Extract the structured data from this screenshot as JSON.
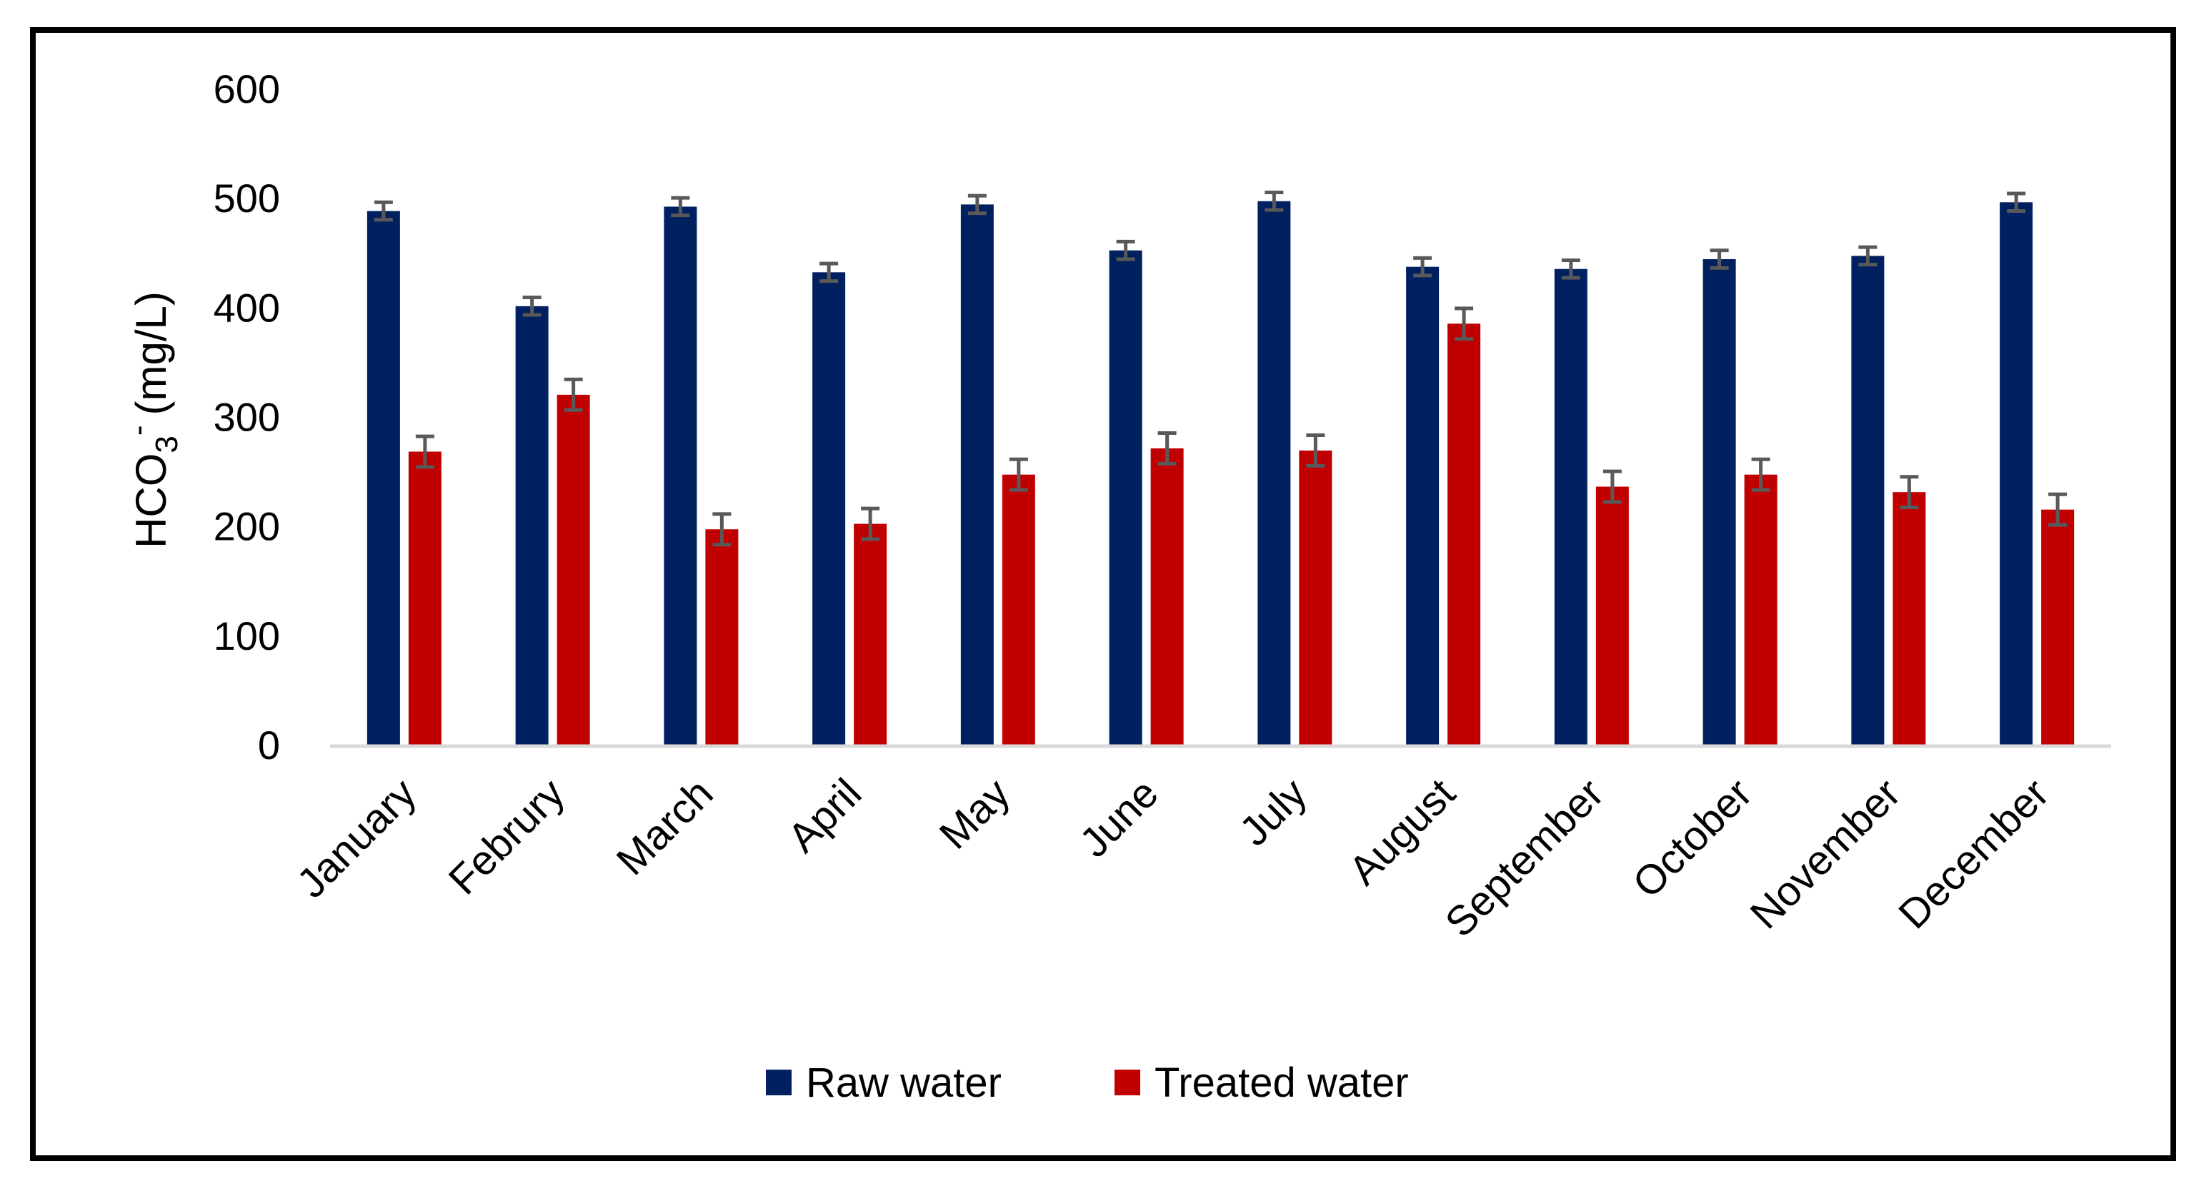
{
  "chart_data": {
    "type": "bar",
    "title": "",
    "xlabel": "",
    "ylabel": {
      "main": "HCO",
      "subscript": "3",
      "superscript": "-",
      "units": "(mg/L)"
    },
    "ylim": [
      0,
      600
    ],
    "yticks": [
      0,
      100,
      200,
      300,
      400,
      500,
      600
    ],
    "grid": false,
    "legend_position": "bottom",
    "categories": [
      "January",
      "Februry",
      "March",
      "April",
      "May",
      "June",
      "July",
      "August",
      "September",
      "October",
      "November",
      "December"
    ],
    "series": [
      {
        "name": "Raw water",
        "color": "#002060",
        "values": [
          488,
          401,
          492,
          432,
          494,
          452,
          497,
          437,
          435,
          444,
          447,
          496
        ],
        "errors": [
          8,
          8,
          8,
          8,
          8,
          8,
          8,
          8,
          8,
          8,
          8,
          8
        ]
      },
      {
        "name": "Treated water",
        "color": "#C00000",
        "values": [
          268,
          320,
          197,
          202,
          247,
          271,
          269,
          385,
          236,
          247,
          231,
          215
        ],
        "errors": [
          14,
          14,
          14,
          14,
          14,
          14,
          14,
          14,
          14,
          14,
          14,
          14
        ]
      }
    ],
    "error_bar_color": "#595959",
    "axis_line_color": "#D9D9D9"
  }
}
